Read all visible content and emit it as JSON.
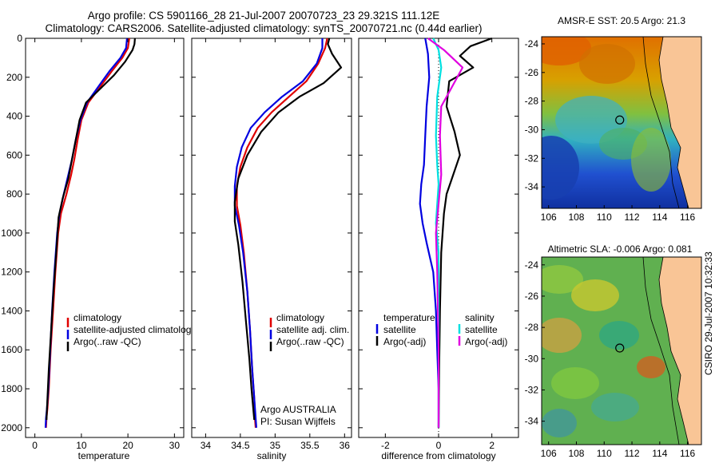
{
  "header": {
    "line1": "Argo profile: CS 5901166_28 21-Jul-2007 20070723_23 29.321S 111.12E",
    "line2": "Climatology: CARS2006. Satellite-adjusted climatology: synTS_20070721.nc (0.44d earlier)"
  },
  "stamp": "CSIRO 29-Jul-2007 10:32:33",
  "colors": {
    "climatology": "#e00000",
    "satellite": "#0000e0",
    "argo": "#000000",
    "sal_satellite": "#00e0e0",
    "sal_argo": "#e000e0"
  },
  "chart_data": [
    {
      "type": "line",
      "xlabel": "temperature",
      "xlim": [
        -2,
        32
      ],
      "xticks": [
        "0",
        "10",
        "20",
        "30"
      ],
      "ylim": [
        0,
        2050
      ],
      "yticks": [
        "0",
        "200",
        "400",
        "600",
        "800",
        "1000",
        "1200",
        "1400",
        "1600",
        "1800",
        "2000"
      ],
      "legend": [
        "climatology",
        "satellite-adjusted climatology",
        "Argo(..raw -QC)"
      ],
      "series": [
        {
          "name": "climatology",
          "color": "#e00000",
          "x": [
            20.3,
            20.0,
            18.8,
            16.5,
            14.0,
            11.5,
            10.0,
            9.2,
            8.5,
            7.8,
            6.8,
            5.6,
            5.0,
            4.4,
            3.9,
            3.4,
            3.0,
            2.7,
            2.5,
            2.4
          ],
          "y": [
            0,
            50,
            100,
            170,
            250,
            330,
            420,
            520,
            620,
            700,
            800,
            900,
            1000,
            1200,
            1400,
            1600,
            1800,
            1900,
            1950,
            2000
          ]
        },
        {
          "name": "satellite-adjusted climatology",
          "color": "#0000e0",
          "x": [
            19.8,
            19.6,
            18.4,
            16.0,
            13.6,
            11.2,
            9.8,
            8.8,
            8.0,
            7.2,
            6.2,
            5.3,
            4.8,
            4.2,
            3.7,
            3.3,
            2.9,
            2.6,
            2.4,
            2.3
          ],
          "y": [
            0,
            50,
            100,
            170,
            250,
            330,
            420,
            520,
            620,
            700,
            800,
            900,
            1000,
            1200,
            1400,
            1600,
            1800,
            1900,
            1950,
            2000
          ]
        },
        {
          "name": "Argo(..raw -QC)",
          "color": "#000000",
          "x": [
            21.5,
            21.4,
            21.0,
            19.4,
            17.0,
            14.0,
            11.0,
            9.6,
            8.8,
            8.0,
            7.2,
            6.0,
            5.1,
            4.6,
            4.0,
            3.5,
            3.0,
            2.7,
            2.5
          ],
          "y": [
            0,
            30,
            60,
            120,
            190,
            260,
            330,
            420,
            520,
            620,
            720,
            820,
            920,
            1100,
            1300,
            1500,
            1700,
            1850,
            1960
          ]
        }
      ]
    },
    {
      "type": "line",
      "xlabel": "salinity",
      "xlim": [
        33.8,
        36.1
      ],
      "xticks": [
        "34",
        "34.5",
        "35",
        "35.5",
        "36"
      ],
      "ylim": [
        0,
        2050
      ],
      "legend": [
        "climatology",
        "satellite adj. clim.",
        "Argo(..raw -QC)"
      ],
      "annotations": [
        "Argo AUSTRALIA",
        "PI: Susan Wijffels"
      ],
      "series": [
        {
          "name": "climatology",
          "color": "#e00000",
          "x": [
            35.75,
            35.72,
            35.62,
            35.45,
            35.2,
            34.95,
            34.75,
            34.6,
            34.5,
            34.45,
            34.45,
            34.5,
            34.55,
            34.6,
            34.64,
            34.67,
            34.7,
            34.71,
            34.72
          ],
          "y": [
            0,
            50,
            130,
            220,
            300,
            380,
            460,
            560,
            660,
            760,
            860,
            960,
            1100,
            1300,
            1500,
            1700,
            1850,
            1950,
            2000
          ]
        },
        {
          "name": "satellite adj. clim.",
          "color": "#0000e0",
          "x": [
            35.68,
            35.68,
            35.6,
            35.4,
            35.1,
            34.85,
            34.65,
            34.52,
            34.45,
            34.42,
            34.42,
            34.48,
            34.54,
            34.6,
            34.64,
            34.67,
            34.7,
            34.72,
            34.73
          ],
          "y": [
            0,
            50,
            130,
            220,
            300,
            380,
            460,
            560,
            660,
            760,
            860,
            960,
            1100,
            1300,
            1500,
            1700,
            1850,
            1950,
            2000
          ]
        },
        {
          "name": "Argo(..raw -QC)",
          "color": "#000000",
          "x": [
            35.78,
            35.76,
            35.82,
            35.95,
            35.7,
            35.35,
            35.05,
            34.8,
            34.6,
            34.47,
            34.42,
            34.42,
            34.47,
            34.53,
            34.58,
            34.63,
            34.66,
            34.69,
            34.7
          ],
          "y": [
            0,
            30,
            80,
            150,
            230,
            300,
            380,
            480,
            600,
            720,
            840,
            940,
            1060,
            1250,
            1450,
            1650,
            1800,
            1920,
            1960
          ]
        }
      ]
    },
    {
      "type": "line",
      "xlabel": "difference from climatology",
      "xlim": [
        -3,
        3
      ],
      "xticks": [
        "-2",
        "0",
        "2"
      ],
      "ylim": [
        0,
        2050
      ],
      "legend": [
        "temperature",
        "satellite",
        "Argo(-adj)",
        "salinity",
        "satellite",
        "Argo(-adj)"
      ],
      "series": [
        {
          "name": "temperature satellite",
          "color": "#0000e0",
          "x": [
            -0.5,
            -0.4,
            -0.35,
            -0.45,
            -0.5,
            -0.55,
            -0.65,
            -0.7,
            -0.6,
            -0.45,
            -0.2,
            -0.1,
            -0.05,
            0,
            0
          ],
          "y": [
            0,
            80,
            200,
            350,
            500,
            650,
            750,
            850,
            950,
            1050,
            1200,
            1400,
            1600,
            1800,
            2000
          ]
        },
        {
          "name": "temperature Argo(-adj)",
          "color": "#000000",
          "x": [
            2.0,
            1.2,
            0.8,
            1.3,
            0.4,
            0.3,
            0.6,
            0.8,
            0.5,
            0.3,
            0.2,
            0.1,
            0.05,
            0.02,
            0
          ],
          "y": [
            0,
            40,
            90,
            150,
            220,
            350,
            480,
            600,
            720,
            800,
            900,
            1100,
            1400,
            1700,
            2000
          ]
        },
        {
          "name": "salinity satellite",
          "color": "#00e0e0",
          "x": [
            -0.2,
            0.0,
            0.1,
            -0.05,
            -0.1,
            -0.05,
            0.0,
            -0.05,
            -0.1,
            0.0,
            0.0,
            0.0
          ],
          "y": [
            0,
            60,
            150,
            300,
            500,
            650,
            750,
            850,
            950,
            1100,
            1500,
            2000
          ]
        },
        {
          "name": "salinity Argo(-adj)",
          "color": "#e000e0",
          "x": [
            -0.4,
            0.2,
            0.9,
            0.5,
            0.1,
            0.05,
            0.1,
            0.0,
            -0.1,
            -0.05,
            0.0,
            0.0
          ],
          "y": [
            0,
            60,
            150,
            250,
            350,
            500,
            700,
            850,
            1000,
            1200,
            1600,
            2000
          ]
        }
      ]
    },
    {
      "type": "heatmap",
      "title": "AMSR-E SST: 20.5 Argo: 21.3",
      "xticks": [
        "106",
        "108",
        "110",
        "112",
        "114",
        "116"
      ],
      "yticks": [
        "-24",
        "-26",
        "-28",
        "-30",
        "-32",
        "-34"
      ],
      "xlim": [
        105.5,
        117
      ],
      "ylim": [
        -35.5,
        -23.5
      ],
      "marker": {
        "lon": 111.12,
        "lat": -29.32
      }
    },
    {
      "type": "heatmap",
      "title": "Altimetric SLA: -0.006 Argo: 0.081",
      "xticks": [
        "106",
        "108",
        "110",
        "112",
        "114",
        "116"
      ],
      "yticks": [
        "-24",
        "-26",
        "-28",
        "-30",
        "-32",
        "-34"
      ],
      "xlim": [
        105.5,
        117
      ],
      "ylim": [
        -35.5,
        -23.5
      ],
      "marker": {
        "lon": 111.12,
        "lat": -29.32
      }
    }
  ]
}
